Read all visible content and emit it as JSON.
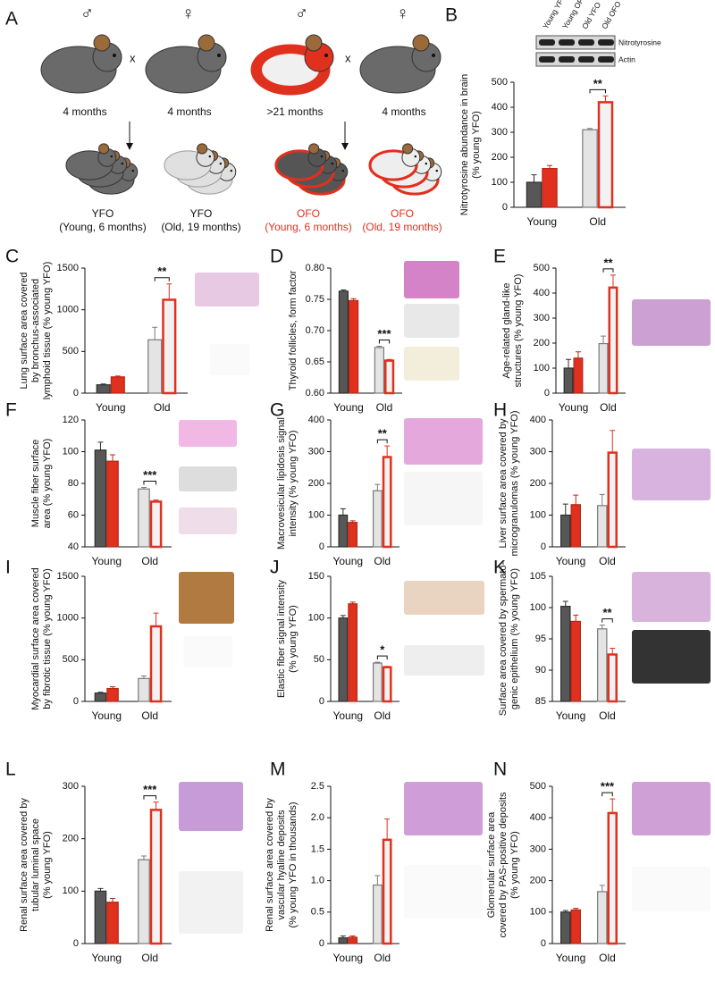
{
  "diagram": {
    "panel": "A",
    "crosses": [
      {
        "male": "♂",
        "cross": "x",
        "female": "♀",
        "male_age": "4 months",
        "female_age": "4 months"
      },
      {
        "male": "♂",
        "cross": "x",
        "female": "♀",
        "male_age": ">21 months",
        "female_age": "4 months"
      }
    ],
    "offspring": [
      {
        "name": "YFO",
        "desc": "(Young, 6 months)"
      },
      {
        "name": "YFO",
        "desc": "(Old, 19 months)"
      },
      {
        "name": "OFO",
        "desc": "(Young, 6 months)"
      },
      {
        "name": "OFO",
        "desc": "(Old, 19 months)"
      }
    ]
  },
  "series_style": [
    {
      "fill": [
        "#575757",
        "#e4e4e4"
      ],
      "stroke": [
        "#2e2e2e",
        "#7a7a7a"
      ]
    },
    {
      "fill": [
        "#e0301e",
        "#f2f2f2"
      ],
      "stroke": [
        "#b82818",
        "#e0301e"
      ]
    }
  ],
  "chart_data": [
    {
      "type": "bar",
      "panel": "B",
      "ylabel": [
        "Nitrotyrosine abundance in brain",
        "(% young YFO)"
      ],
      "categories": [
        "Young",
        "Old"
      ],
      "ylim": [
        0,
        500
      ],
      "yticks": [
        0,
        100,
        200,
        300,
        400,
        500
      ],
      "series": [
        {
          "values": [
            100,
            310
          ],
          "errors": [
            30,
            5
          ]
        },
        {
          "values": [
            155,
            420
          ],
          "errors": [
            12,
            25
          ]
        }
      ],
      "annotation": "**",
      "blot": {
        "lanes": [
          "Young YFO",
          "Young OFO",
          "Old YFO",
          "Old OFO"
        ],
        "rows": [
          "Nitrotyrosine",
          "Actin"
        ]
      }
    },
    {
      "type": "bar",
      "panel": "C",
      "ylabel": [
        "Lung surface area covered",
        "by bronchus-associated",
        "lymphoid tissue (% young YFO)"
      ],
      "categories": [
        "Young",
        "Old"
      ],
      "ylim": [
        0,
        1500
      ],
      "yticks": [
        0,
        500,
        1000,
        1500
      ],
      "series": [
        {
          "values": [
            100,
            640
          ],
          "errors": [
            10,
            150
          ]
        },
        {
          "values": [
            195,
            1120
          ],
          "errors": [
            10,
            190
          ]
        }
      ],
      "annotation": "**"
    },
    {
      "type": "bar",
      "panel": "D",
      "ylabel": [
        "Thyroid follicles, form factor"
      ],
      "categories": [
        "Young",
        "Old"
      ],
      "ylim": [
        0.6,
        0.8
      ],
      "yticks": [
        {
          "value": 0.6,
          "label": "0.60"
        },
        0.65,
        {
          "value": 0.7,
          "label": "0.70"
        },
        0.75,
        {
          "value": 0.8,
          "label": "0.80"
        }
      ],
      "series": [
        {
          "values": [
            0.763,
            0.673
          ],
          "errors": [
            0.002,
            0.002
          ]
        },
        {
          "values": [
            0.748,
            0.652
          ],
          "errors": [
            0.003,
            0.002
          ]
        }
      ],
      "annotation": "***"
    },
    {
      "type": "bar",
      "panel": "E",
      "ylabel": [
        "Age-related gland-like",
        "structures (% young YFO)"
      ],
      "categories": [
        "Young",
        "Old"
      ],
      "ylim": [
        0,
        500
      ],
      "yticks": [
        0,
        100,
        200,
        300,
        400,
        500
      ],
      "series": [
        {
          "values": [
            100,
            198
          ],
          "errors": [
            35,
            30
          ]
        },
        {
          "values": [
            140,
            422
          ],
          "errors": [
            25,
            50
          ]
        }
      ],
      "annotation": "**"
    },
    {
      "type": "bar",
      "panel": "F",
      "ylabel": [
        "Muscle fiber surface",
        "area (% young YFO)"
      ],
      "categories": [
        "Young",
        "Old"
      ],
      "ylim": [
        40,
        120
      ],
      "yticks": [
        40,
        60,
        80,
        100,
        120
      ],
      "series": [
        {
          "values": [
            101,
            76.5
          ],
          "errors": [
            5,
            1
          ]
        },
        {
          "values": [
            94,
            68.5
          ],
          "errors": [
            4,
            1
          ]
        }
      ],
      "annotation": "***"
    },
    {
      "type": "bar",
      "panel": "G",
      "ylabel": [
        "Macrovesicular lipidosis signal",
        "intensity (% young YFO)"
      ],
      "categories": [
        "Young",
        "Old"
      ],
      "ylim": [
        0,
        400
      ],
      "yticks": [
        0,
        100,
        200,
        300,
        400
      ],
      "series": [
        {
          "values": [
            100,
            177
          ],
          "errors": [
            20,
            20
          ]
        },
        {
          "values": [
            77,
            283
          ],
          "errors": [
            5,
            35
          ]
        }
      ],
      "annotation": "**"
    },
    {
      "type": "bar",
      "panel": "H",
      "ylabel": [
        "Liver surface area covered by",
        "microgranulomas (% young YFO)"
      ],
      "categories": [
        "Young",
        "Old"
      ],
      "ylim": [
        0,
        400
      ],
      "yticks": [
        0,
        100,
        200,
        300,
        400
      ],
      "series": [
        {
          "values": [
            100,
            130
          ],
          "errors": [
            35,
            35
          ]
        },
        {
          "values": [
            133,
            297
          ],
          "errors": [
            30,
            70
          ]
        }
      ]
    },
    {
      "type": "bar",
      "panel": "I",
      "ylabel": [
        "Myocardial surface area covered",
        "by fibrotic tissue (% young YFO)"
      ],
      "categories": [
        "Young",
        "Old"
      ],
      "ylim": [
        0,
        1500
      ],
      "yticks": [
        0,
        500,
        1000,
        1500
      ],
      "series": [
        {
          "values": [
            100,
            275
          ],
          "errors": [
            10,
            30
          ]
        },
        {
          "values": [
            155,
            900
          ],
          "errors": [
            20,
            160
          ]
        }
      ]
    },
    {
      "type": "bar",
      "panel": "J",
      "ylabel": [
        "Elastic fiber signal intensity",
        "(% young YFO)"
      ],
      "categories": [
        "Young",
        "Old"
      ],
      "ylim": [
        0,
        150
      ],
      "yticks": [
        0,
        50,
        100,
        150
      ],
      "series": [
        {
          "values": [
            100,
            46
          ],
          "errors": [
            3,
            1
          ]
        },
        {
          "values": [
            117,
            41
          ],
          "errors": [
            2,
            1
          ]
        }
      ],
      "annotation": "*"
    },
    {
      "type": "bar",
      "panel": "K",
      "ylabel": [
        "Surface area covered by spermato-",
        "genic epithelium (% young YFO)"
      ],
      "categories": [
        "Young",
        "Old"
      ],
      "ylim": [
        85,
        105
      ],
      "yticks": [
        85,
        90,
        95,
        100,
        105
      ],
      "series": [
        {
          "values": [
            100.2,
            96.6
          ],
          "errors": [
            0.8,
            0.6
          ]
        },
        {
          "values": [
            97.8,
            92.5
          ],
          "errors": [
            1,
            1
          ]
        }
      ],
      "annotation": "**"
    },
    {
      "type": "bar",
      "panel": "L",
      "ylabel": [
        "Renal surface area covered by",
        "tubular luminal space",
        "(% young YFO)"
      ],
      "categories": [
        "Young",
        "Old"
      ],
      "ylim": [
        0,
        300
      ],
      "yticks": [
        0,
        100,
        200,
        300
      ],
      "series": [
        {
          "values": [
            100,
            160
          ],
          "errors": [
            5,
            7
          ]
        },
        {
          "values": [
            79,
            255
          ],
          "errors": [
            7,
            15
          ]
        }
      ],
      "annotation": "***"
    },
    {
      "type": "bar",
      "panel": "M",
      "ylabel": [
        "Renal surface area covered by",
        "vascular hyaline deposits",
        "(% young YFO in thousands)"
      ],
      "categories": [
        "Young",
        "Old"
      ],
      "ylim": [
        0,
        2.5
      ],
      "yticks": [
        0,
        0.5,
        {
          "value": 1,
          "label": "1.0"
        },
        1.5,
        {
          "value": 2,
          "label": "2.0"
        },
        2.5
      ],
      "series": [
        {
          "values": [
            0.09,
            0.93
          ],
          "errors": [
            0.03,
            0.15
          ]
        },
        {
          "values": [
            0.1,
            1.65
          ],
          "errors": [
            0.02,
            0.33
          ]
        }
      ]
    },
    {
      "type": "bar",
      "panel": "N",
      "ylabel": [
        "Glomerular surface area",
        "covered by PAS-positive deposits",
        "(% young YFO)"
      ],
      "categories": [
        "Young",
        "Old"
      ],
      "ylim": [
        0,
        500
      ],
      "yticks": [
        0,
        100,
        200,
        300,
        400,
        500
      ],
      "series": [
        {
          "values": [
            100,
            165
          ],
          "errors": [
            5,
            20
          ]
        },
        {
          "values": [
            107,
            415
          ],
          "errors": [
            5,
            45
          ]
        }
      ],
      "annotation": "***"
    }
  ]
}
